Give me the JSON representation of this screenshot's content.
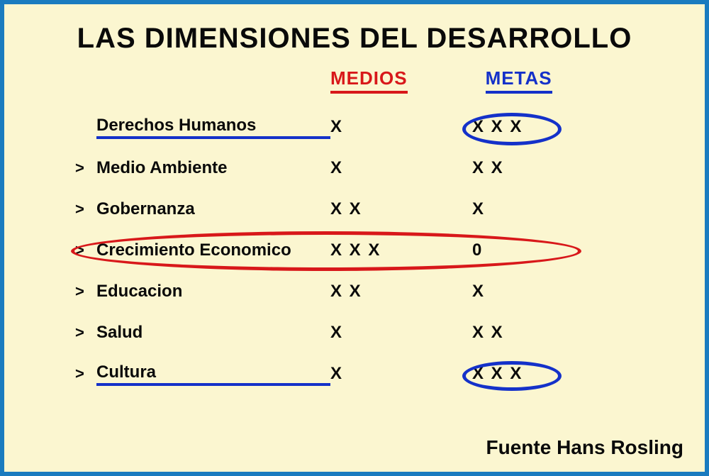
{
  "title": "LAS DIMENSIONES DEL DESARROLLO",
  "headers": {
    "medios": "MEDIOS",
    "metas": "METAS"
  },
  "colors": {
    "border": "#1a7bbf",
    "background": "#fbf6d0",
    "red": "#d8181a",
    "blue": "#1431c9",
    "text": "#0a0a0a"
  },
  "rows": [
    {
      "bullet": "",
      "label": "Derechos Humanos",
      "label_underline_blue": true,
      "medios": "X",
      "metas": "X  X  X",
      "metas_circle_blue": true,
      "row_circle_red": false
    },
    {
      "bullet": ">",
      "label": "Medio Ambiente",
      "label_underline_blue": false,
      "medios": "X",
      "metas": "X  X",
      "metas_circle_blue": false,
      "row_circle_red": false
    },
    {
      "bullet": ">",
      "label": "Gobernanza",
      "label_underline_blue": false,
      "medios": "X  X",
      "metas": "X",
      "metas_circle_blue": false,
      "row_circle_red": false
    },
    {
      "bullet": ">",
      "label": "Crecimiento Economico",
      "label_underline_blue": false,
      "medios": "X  X  X",
      "metas": "0",
      "metas_circle_blue": false,
      "row_circle_red": true
    },
    {
      "bullet": ">",
      "label": "Educacion",
      "label_underline_blue": false,
      "medios": "X  X",
      "metas": "X",
      "metas_circle_blue": false,
      "row_circle_red": false
    },
    {
      "bullet": ">",
      "label": "Salud",
      "label_underline_blue": false,
      "medios": "X",
      "metas": "X  X",
      "metas_circle_blue": false,
      "row_circle_red": false
    },
    {
      "bullet": ">",
      "label": "Cultura",
      "label_underline_blue": true,
      "medios": "X",
      "metas": "X  X  X",
      "metas_circle_blue": true,
      "row_circle_red": false
    }
  ],
  "source": "Fuente Hans Rosling",
  "type": "table",
  "fonts": {
    "title_pt": 40,
    "header_pt": 26,
    "row_pt": 24,
    "source_pt": 28
  }
}
